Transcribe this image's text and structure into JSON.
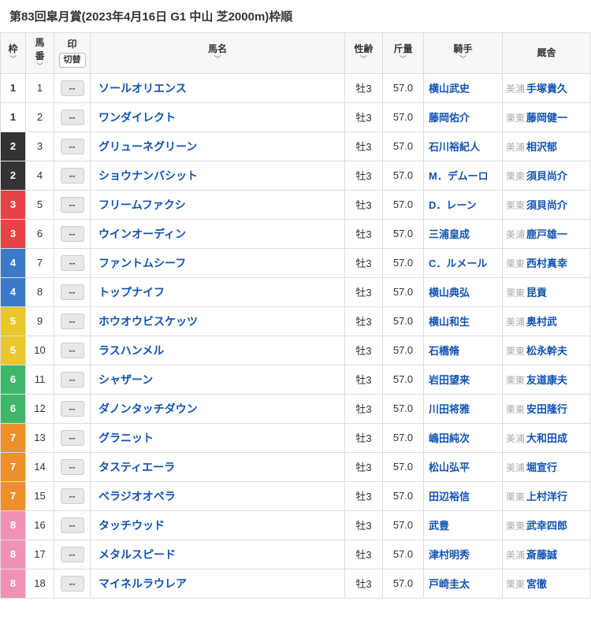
{
  "title": "第83回皐月賞(2023年4月16日 G1 中山 芝2000m)枠順",
  "headers": {
    "waku": "枠",
    "umaban": "馬",
    "umaban2": "番",
    "in": "印",
    "toggle": "切替",
    "name": "馬名",
    "sex": "性齢",
    "weight": "斤量",
    "jockey": "騎手",
    "trainer": "厩舎"
  },
  "entries": [
    {
      "waku": 1,
      "num": 1,
      "mark": "--",
      "name": "ソールオリエンス",
      "sex": "牡3",
      "weight": "57.0",
      "jockey": "横山武史",
      "region": "美浦",
      "trainer": "手塚貴久"
    },
    {
      "waku": 1,
      "num": 2,
      "mark": "--",
      "name": "ワンダイレクト",
      "sex": "牡3",
      "weight": "57.0",
      "jockey": "藤岡佑介",
      "region": "栗東",
      "trainer": "藤岡健一"
    },
    {
      "waku": 2,
      "num": 3,
      "mark": "--",
      "name": "グリューネグリーン",
      "sex": "牡3",
      "weight": "57.0",
      "jockey": "石川裕紀人",
      "region": "美浦",
      "trainer": "相沢郁"
    },
    {
      "waku": 2,
      "num": 4,
      "mark": "--",
      "name": "ショウナンバシット",
      "sex": "牡3",
      "weight": "57.0",
      "jockey": "M．デムーロ",
      "region": "栗東",
      "trainer": "須貝尚介"
    },
    {
      "waku": 3,
      "num": 5,
      "mark": "--",
      "name": "フリームファクシ",
      "sex": "牡3",
      "weight": "57.0",
      "jockey": "D．レーン",
      "region": "栗東",
      "trainer": "須貝尚介"
    },
    {
      "waku": 3,
      "num": 6,
      "mark": "--",
      "name": "ウインオーディン",
      "sex": "牡3",
      "weight": "57.0",
      "jockey": "三浦皇成",
      "region": "美浦",
      "trainer": "鹿戸雄一"
    },
    {
      "waku": 4,
      "num": 7,
      "mark": "--",
      "name": "ファントムシーフ",
      "sex": "牡3",
      "weight": "57.0",
      "jockey": "C．ルメール",
      "region": "栗東",
      "trainer": "西村真幸"
    },
    {
      "waku": 4,
      "num": 8,
      "mark": "--",
      "name": "トップナイフ",
      "sex": "牡3",
      "weight": "57.0",
      "jockey": "横山典弘",
      "region": "栗東",
      "trainer": "昆貢"
    },
    {
      "waku": 5,
      "num": 9,
      "mark": "--",
      "name": "ホウオウビスケッツ",
      "sex": "牡3",
      "weight": "57.0",
      "jockey": "横山和生",
      "region": "美浦",
      "trainer": "奥村武"
    },
    {
      "waku": 5,
      "num": 10,
      "mark": "--",
      "name": "ラスハンメル",
      "sex": "牡3",
      "weight": "57.0",
      "jockey": "石橋脩",
      "region": "栗東",
      "trainer": "松永幹夫"
    },
    {
      "waku": 6,
      "num": 11,
      "mark": "--",
      "name": "シャザーン",
      "sex": "牡3",
      "weight": "57.0",
      "jockey": "岩田望来",
      "region": "栗東",
      "trainer": "友道康夫"
    },
    {
      "waku": 6,
      "num": 12,
      "mark": "--",
      "name": "ダノンタッチダウン",
      "sex": "牡3",
      "weight": "57.0",
      "jockey": "川田将雅",
      "region": "栗東",
      "trainer": "安田隆行"
    },
    {
      "waku": 7,
      "num": 13,
      "mark": "--",
      "name": "グラニット",
      "sex": "牡3",
      "weight": "57.0",
      "jockey": "嶋田純次",
      "region": "美浦",
      "trainer": "大和田成"
    },
    {
      "waku": 7,
      "num": 14,
      "mark": "--",
      "name": "タスティエーラ",
      "sex": "牡3",
      "weight": "57.0",
      "jockey": "松山弘平",
      "region": "美浦",
      "trainer": "堀宣行"
    },
    {
      "waku": 7,
      "num": 15,
      "mark": "--",
      "name": "ベラジオオペラ",
      "sex": "牡3",
      "weight": "57.0",
      "jockey": "田辺裕信",
      "region": "栗東",
      "trainer": "上村洋行"
    },
    {
      "waku": 8,
      "num": 16,
      "mark": "--",
      "name": "タッチウッド",
      "sex": "牡3",
      "weight": "57.0",
      "jockey": "武豊",
      "region": "栗東",
      "trainer": "武幸四郎"
    },
    {
      "waku": 8,
      "num": 17,
      "mark": "--",
      "name": "メタルスピード",
      "sex": "牡3",
      "weight": "57.0",
      "jockey": "津村明秀",
      "region": "美浦",
      "trainer": "斎藤誠"
    },
    {
      "waku": 8,
      "num": 18,
      "mark": "--",
      "name": "マイネルラウレア",
      "sex": "牡3",
      "weight": "57.0",
      "jockey": "戸崎圭太",
      "region": "栗東",
      "trainer": "宮徹"
    }
  ]
}
